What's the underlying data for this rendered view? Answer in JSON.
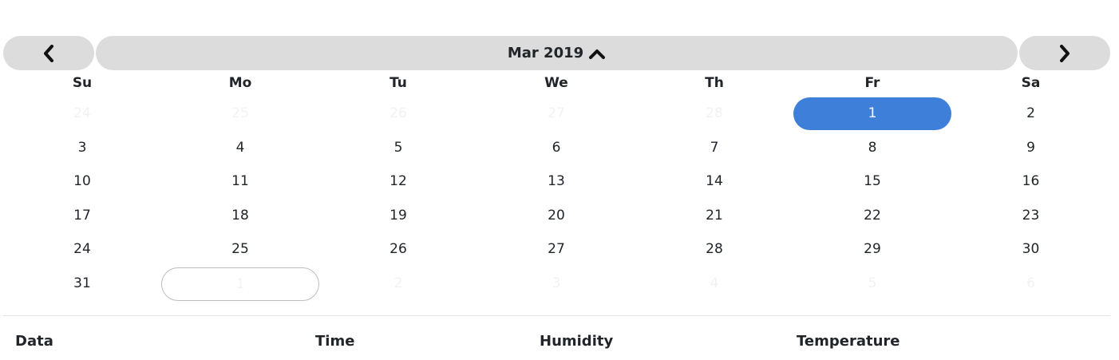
{
  "calendar": {
    "month_label": "Mar 2019",
    "weekdays": [
      "Su",
      "Mo",
      "Tu",
      "We",
      "Th",
      "Fr",
      "Sa"
    ],
    "weeks": [
      [
        {
          "d": "24",
          "o": true
        },
        {
          "d": "25",
          "o": true
        },
        {
          "d": "26",
          "o": true
        },
        {
          "d": "27",
          "o": true
        },
        {
          "d": "28",
          "o": true
        },
        {
          "d": "1",
          "s": true
        },
        {
          "d": "2"
        }
      ],
      [
        {
          "d": "3"
        },
        {
          "d": "4"
        },
        {
          "d": "5"
        },
        {
          "d": "6"
        },
        {
          "d": "7"
        },
        {
          "d": "8"
        },
        {
          "d": "9"
        }
      ],
      [
        {
          "d": "10"
        },
        {
          "d": "11"
        },
        {
          "d": "12"
        },
        {
          "d": "13"
        },
        {
          "d": "14"
        },
        {
          "d": "15"
        },
        {
          "d": "16"
        }
      ],
      [
        {
          "d": "17"
        },
        {
          "d": "18"
        },
        {
          "d": "19"
        },
        {
          "d": "20"
        },
        {
          "d": "21"
        },
        {
          "d": "22"
        },
        {
          "d": "23"
        }
      ],
      [
        {
          "d": "24"
        },
        {
          "d": "25"
        },
        {
          "d": "26"
        },
        {
          "d": "27"
        },
        {
          "d": "28"
        },
        {
          "d": "29"
        },
        {
          "d": "30"
        }
      ],
      [
        {
          "d": "31"
        },
        {
          "d": "1",
          "o": true,
          "t": true
        },
        {
          "d": "2",
          "o": true
        },
        {
          "d": "3",
          "o": true
        },
        {
          "d": "4",
          "o": true
        },
        {
          "d": "5",
          "o": true
        },
        {
          "d": "6",
          "o": true
        }
      ]
    ],
    "selected_color": "#3d7fd9",
    "nav_bg": "#dcdcdc"
  },
  "table": {
    "headers": [
      "Data",
      "Time",
      "Humidity",
      "Temperature"
    ]
  }
}
